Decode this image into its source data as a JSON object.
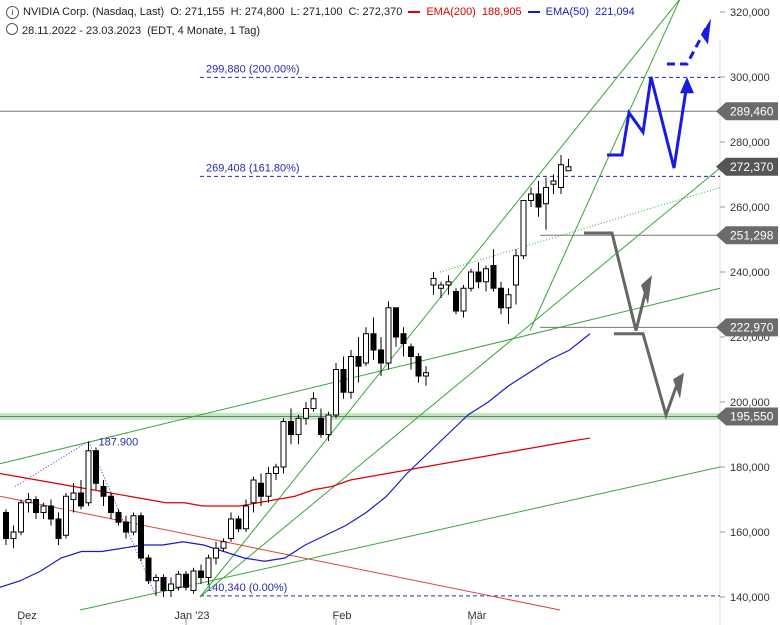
{
  "header": {
    "symbol": "NVIDIA Corp. (Nasdaq, Last)",
    "open": "O: 271,155",
    "high": "H: 274,800",
    "low": "L: 271,100",
    "close": "C: 272,370",
    "ema200_label": "EMA(200)",
    "ema200_value": "188,905",
    "ema50_label": "EMA(50)",
    "ema50_value": "221,094",
    "range": "28.11.2022 - 23.03.2023",
    "settings": "(EDT, 4 Monate, 1 Tag)"
  },
  "chart_data": {
    "type": "candlestick",
    "title": "NVIDIA Corp. (Nasdaq, Last)",
    "ylim": [
      136,
      324
    ],
    "y_ticks": [
      "320,000",
      "300,000",
      "280,000",
      "260,000",
      "240,000",
      "220,000",
      "200,000",
      "180,000",
      "160,000",
      "140,000"
    ],
    "x_ticks": [
      "Dez",
      "Jan '23",
      "Feb",
      "Mär"
    ],
    "colors": {
      "up": "#ffffff",
      "down": "#000000",
      "ema200": "#e00000",
      "ema50": "#1a1acc",
      "trend": "#3aa63a",
      "projection_blue": "#1a1ae6",
      "projection_gray": "#666666",
      "level_label_bg": "#6b6b6b",
      "support_zone": "#bfe8bf"
    },
    "price_levels": [
      {
        "value": 289.46,
        "label": "289,460"
      },
      {
        "value": 272.37,
        "label": "272,370"
      },
      {
        "value": 251.298,
        "label": "251,298"
      },
      {
        "value": 222.97,
        "label": "222,970"
      },
      {
        "value": 195.55,
        "label": "195,550"
      }
    ],
    "fib_levels": [
      {
        "value": 299.88,
        "label": "299,880 (200.00%)"
      },
      {
        "value": 269.408,
        "label": "269,408 (161.80%)"
      },
      {
        "value": 140.34,
        "label": "140,340 (0.00%)"
      }
    ],
    "annotations": [
      {
        "text": "187.900",
        "value": 187.9
      }
    ],
    "candles": [
      [
        166,
        167,
        156,
        158
      ],
      [
        158,
        162,
        155,
        160
      ],
      [
        160,
        170,
        159,
        169
      ],
      [
        169,
        172,
        166,
        170
      ],
      [
        170,
        171,
        164,
        166
      ],
      [
        166,
        169,
        164,
        168
      ],
      [
        168,
        170,
        162,
        164
      ],
      [
        164,
        166,
        156,
        158
      ],
      [
        159,
        172,
        158,
        171
      ],
      [
        170,
        175,
        166,
        172
      ],
      [
        172,
        176,
        167,
        168
      ],
      [
        169,
        187.9,
        168,
        185
      ],
      [
        185,
        186,
        173,
        175
      ],
      [
        174,
        176,
        168,
        171
      ],
      [
        171,
        172,
        164,
        166
      ],
      [
        166,
        167,
        162,
        163
      ],
      [
        163,
        165,
        158,
        160
      ],
      [
        160,
        166,
        159,
        165
      ],
      [
        165,
        166,
        151,
        152
      ],
      [
        152,
        153,
        144,
        145
      ],
      [
        145,
        147,
        140.34,
        146
      ],
      [
        146,
        147,
        140,
        142
      ],
      [
        142,
        146,
        140,
        144
      ],
      [
        143,
        148,
        142,
        147
      ],
      [
        147,
        148,
        142,
        143
      ],
      [
        142,
        149,
        141,
        148
      ],
      [
        148,
        150,
        144,
        146
      ],
      [
        146,
        153,
        144,
        152
      ],
      [
        152,
        157,
        150,
        155
      ],
      [
        155,
        158,
        154,
        157
      ],
      [
        158,
        166,
        157,
        164
      ],
      [
        164,
        165,
        160,
        161
      ],
      [
        161,
        170,
        160,
        168
      ],
      [
        169,
        177,
        166,
        176
      ],
      [
        175,
        178,
        168,
        171
      ],
      [
        171,
        180,
        169,
        178
      ],
      [
        178,
        181,
        176,
        180
      ],
      [
        180,
        195,
        178,
        194
      ],
      [
        194,
        198,
        187,
        190
      ],
      [
        190,
        196,
        187,
        195
      ],
      [
        195,
        200,
        193,
        198
      ],
      [
        198,
        203,
        197,
        201
      ],
      [
        195,
        198,
        189,
        190
      ],
      [
        190,
        197,
        188,
        196
      ],
      [
        196,
        212,
        195,
        210
      ],
      [
        210,
        214,
        201,
        203
      ],
      [
        203,
        216,
        201,
        214
      ],
      [
        214,
        220,
        206,
        211
      ],
      [
        212,
        223,
        211,
        221
      ],
      [
        221,
        226,
        213,
        216
      ],
      [
        216,
        220,
        208,
        212
      ],
      [
        212,
        231,
        210,
        229
      ],
      [
        229,
        229,
        217,
        220
      ],
      [
        221,
        223,
        214,
        218
      ],
      [
        217,
        218,
        210,
        214
      ],
      [
        214,
        215,
        206,
        208
      ],
      [
        208,
        211,
        205,
        209
      ],
      [
        236,
        240,
        233,
        238
      ],
      [
        235,
        237,
        232,
        236
      ],
      [
        236,
        239,
        233,
        237
      ],
      [
        234,
        235,
        227,
        228
      ],
      [
        228,
        236,
        226,
        235
      ],
      [
        235,
        241,
        234,
        240
      ],
      [
        240,
        243,
        235,
        237
      ],
      [
        237,
        242,
        234,
        241
      ],
      [
        242,
        247,
        234,
        235
      ],
      [
        235,
        237,
        227,
        229
      ],
      [
        229,
        235,
        224,
        233
      ],
      [
        236,
        247,
        230,
        245
      ],
      [
        245,
        262,
        244,
        262
      ],
      [
        262,
        266,
        260,
        264
      ],
      [
        264,
        268,
        257,
        260
      ],
      [
        261,
        269,
        253,
        266
      ],
      [
        267,
        270,
        264,
        268
      ],
      [
        266,
        276,
        264,
        273
      ],
      [
        271.155,
        274.8,
        271.1,
        272.37
      ]
    ],
    "ema200": [
      178,
      177,
      176,
      175,
      174,
      173,
      172,
      171,
      170,
      169,
      169,
      168,
      168,
      168,
      169,
      170,
      171,
      173,
      174,
      176,
      177,
      178,
      179,
      180,
      181,
      182,
      183,
      184,
      185,
      186,
      187,
      188,
      188.9
    ],
    "ema50": [
      143,
      145,
      148,
      152,
      154,
      154,
      155,
      156,
      156,
      157,
      156,
      154,
      152,
      151,
      152,
      156,
      159,
      162,
      166,
      171,
      178,
      184,
      190,
      196,
      200,
      205,
      209,
      213,
      216,
      221
    ],
    "trend_lines": 6,
    "projections": {
      "blue_path": [
        276,
        276,
        289,
        283,
        300,
        272,
        298
      ],
      "blue_dashed": [
        304,
        304,
        315
      ],
      "gray_path_1": [
        252,
        252,
        222,
        237
      ],
      "gray_path_2": [
        221,
        221,
        196,
        208
      ]
    }
  }
}
